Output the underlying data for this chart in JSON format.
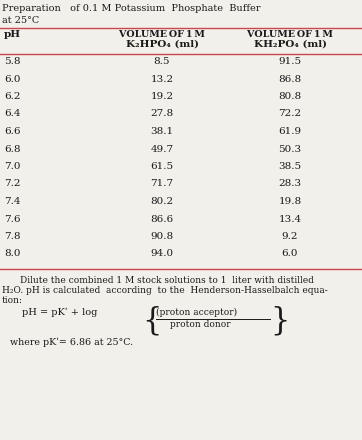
{
  "title_line1": "Preparation   of 0.1 M Potassium  Phosphate  Buffer",
  "title_line2": "at 25°C",
  "ph_values": [
    "5.8",
    "6.0",
    "6.2",
    "6.4",
    "6.6",
    "6.8",
    "7.0",
    "7.2",
    "7.4",
    "7.6",
    "7.8",
    "8.0"
  ],
  "k2hpo4_values": [
    "8.5",
    "13.2",
    "19.2",
    "27.8",
    "38.1",
    "49.7",
    "61.5",
    "71.7",
    "80.2",
    "86.6",
    "90.8",
    "94.0"
  ],
  "kh2po4_values": [
    "91.5",
    "86.8",
    "80.8",
    "72.2",
    "61.9",
    "50.3",
    "38.5",
    "28.3",
    "19.8",
    "13.4",
    "9.2",
    "6.0"
  ],
  "bg_color": "#f2f0eb",
  "text_color": "#1a1a1a",
  "line_color": "#c8474a",
  "title_fontsize": 7.0,
  "header_fontsize": 6.8,
  "data_fontsize": 7.5,
  "footnote_fontsize": 6.5
}
